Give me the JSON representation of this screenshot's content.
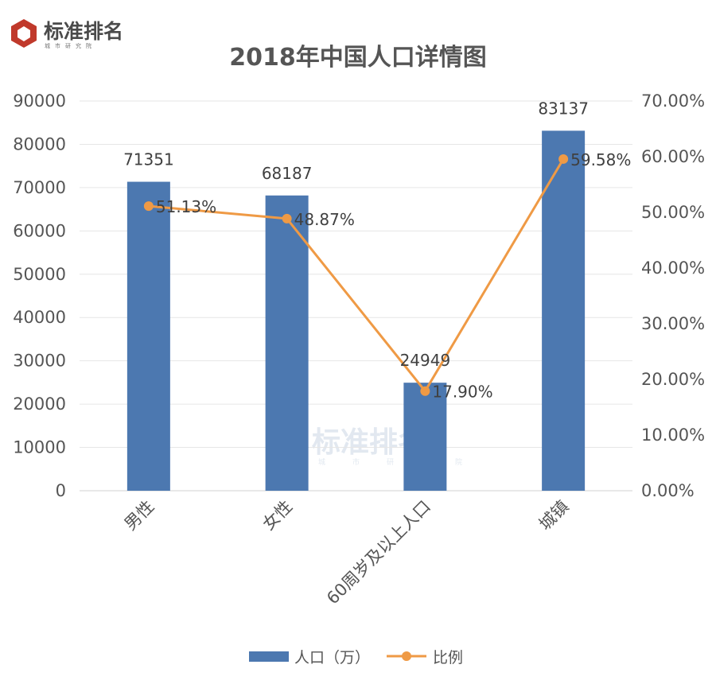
{
  "brand": {
    "name": "标准排名",
    "subtitle": "城市研究院",
    "primary_color": "#c0392b",
    "text_color": "#4a4a4a"
  },
  "chart_data": {
    "type": "bar+line",
    "title": "2018年中国人口详情图",
    "categories": [
      "男性",
      "女性",
      "60周岁及以上人口",
      "城镇"
    ],
    "series": [
      {
        "name": "人口（万）",
        "type": "bar",
        "axis": "left",
        "color": "#4c78b0",
        "values": [
          71351,
          68187,
          24949,
          83137
        ],
        "labels": [
          "71351",
          "68187",
          "24949",
          "83137"
        ]
      },
      {
        "name": "比例",
        "type": "line",
        "axis": "right",
        "color": "#ef9a45",
        "values": [
          51.13,
          48.87,
          17.9,
          59.58
        ],
        "labels": [
          "51.13%",
          "48.87%",
          "17.90%",
          "59.58%"
        ]
      }
    ],
    "y_left": {
      "min": 0,
      "max": 90000,
      "ticks": [
        0,
        10000,
        20000,
        30000,
        40000,
        50000,
        60000,
        70000,
        80000,
        90000
      ],
      "tick_labels": [
        "0",
        "10000",
        "20000",
        "30000",
        "40000",
        "50000",
        "60000",
        "70000",
        "80000",
        "90000"
      ]
    },
    "y_right": {
      "min": 0,
      "max": 70,
      "ticks": [
        0,
        10,
        20,
        30,
        40,
        50,
        60,
        70
      ],
      "tick_labels": [
        "0.00%",
        "10.00%",
        "20.00%",
        "30.00%",
        "40.00%",
        "50.00%",
        "60.00%",
        "70.00%"
      ]
    },
    "grid": true,
    "legend_position": "bottom"
  }
}
